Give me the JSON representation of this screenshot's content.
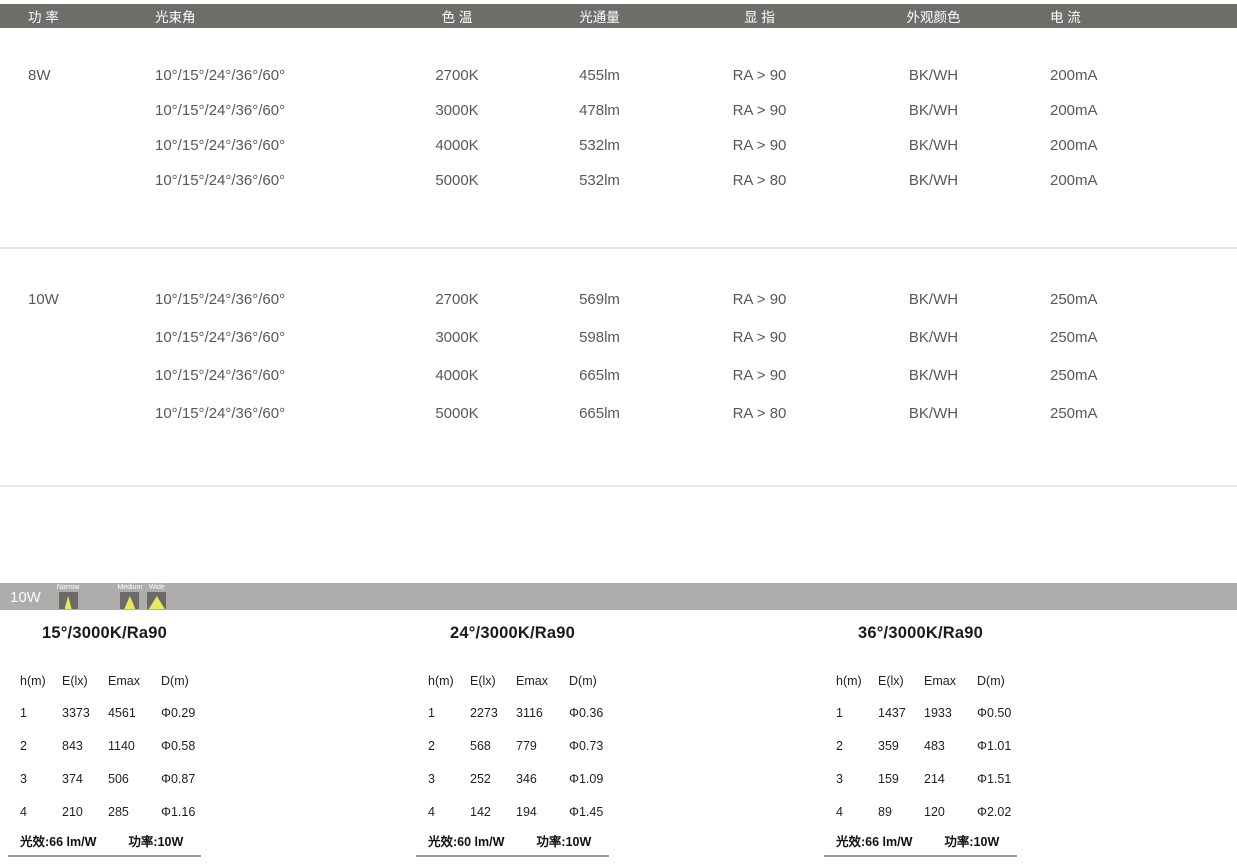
{
  "colors": {
    "header_bar": "#6e6d69",
    "photo_bar": "#aeadab",
    "beam_triangle": "#e7e95f",
    "divider": "#e9e9e9",
    "footer_underline": "#9c9c9c"
  },
  "spec_table": {
    "headers": [
      "功 率",
      "光束角",
      "色 温",
      "光通量",
      "显 指",
      "外观颜色",
      "电 流"
    ],
    "groups": [
      {
        "power": "8W",
        "rows": [
          [
            "10°/15°/24°/36°/60°",
            "2700K",
            "455lm",
            "RA > 90",
            "BK/WH",
            "200mA"
          ],
          [
            "10°/15°/24°/36°/60°",
            "3000K",
            "478lm",
            "RA > 90",
            "BK/WH",
            "200mA"
          ],
          [
            "10°/15°/24°/36°/60°",
            "4000K",
            "532lm",
            "RA > 90",
            "BK/WH",
            "200mA"
          ],
          [
            "10°/15°/24°/36°/60°",
            "5000K",
            "532lm",
            "RA > 80",
            "BK/WH",
            "200mA"
          ]
        ]
      },
      {
        "power": "10W",
        "rows": [
          [
            "10°/15°/24°/36°/60°",
            "2700K",
            "569lm",
            "RA > 90",
            "BK/WH",
            "250mA"
          ],
          [
            "10°/15°/24°/36°/60°",
            "3000K",
            "598lm",
            "RA > 90",
            "BK/WH",
            "250mA"
          ],
          [
            "10°/15°/24°/36°/60°",
            "4000K",
            "665lm",
            "RA > 90",
            "BK/WH",
            "250mA"
          ],
          [
            "10°/15°/24°/36°/60°",
            "5000K",
            "665lm",
            "RA > 80",
            "BK/WH",
            "250mA"
          ]
        ]
      }
    ]
  },
  "photometric": {
    "badge": "10W",
    "beam_icons": [
      {
        "label": "Narrow"
      },
      {
        "label": "Medium"
      },
      {
        "label": "Wide"
      }
    ],
    "tables": [
      {
        "title": "15°/3000K/Ra90",
        "columns": [
          "h(m)",
          "E(lx)",
          "Emax",
          "D(m)"
        ],
        "rows": [
          [
            "1",
            "3373",
            "4561",
            "Φ0.29"
          ],
          [
            "2",
            "843",
            "1140",
            "Φ0.58"
          ],
          [
            "3",
            "374",
            "506",
            "Φ0.87"
          ],
          [
            "4",
            "210",
            "285",
            "Φ1.16"
          ]
        ],
        "efficacy": "光效:66 lm/W",
        "power": "功率:10W"
      },
      {
        "title": "24°/3000K/Ra90",
        "columns": [
          "h(m)",
          "E(lx)",
          "Emax",
          "D(m)"
        ],
        "rows": [
          [
            "1",
            "2273",
            "3116",
            "Φ0.36"
          ],
          [
            "2",
            "568",
            "779",
            "Φ0.73"
          ],
          [
            "3",
            "252",
            "346",
            "Φ1.09"
          ],
          [
            "4",
            "142",
            "194",
            "Φ1.45"
          ]
        ],
        "efficacy": "光效:60 lm/W",
        "power": "功率:10W"
      },
      {
        "title": "36°/3000K/Ra90",
        "columns": [
          "h(m)",
          "E(lx)",
          "Emax",
          "D(m)"
        ],
        "rows": [
          [
            "1",
            "1437",
            "1933",
            "Φ0.50"
          ],
          [
            "2",
            "359",
            "483",
            "Φ1.01"
          ],
          [
            "3",
            "159",
            "214",
            "Φ1.51"
          ],
          [
            "4",
            "89",
            "120",
            "Φ2.02"
          ]
        ],
        "efficacy": "光效:66 lm/W",
        "power": "功率:10W"
      }
    ]
  }
}
